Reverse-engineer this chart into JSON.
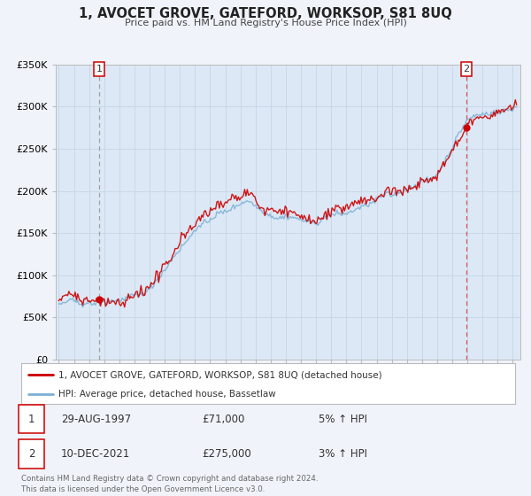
{
  "title": "1, AVOCET GROVE, GATEFORD, WORKSOP, S81 8UQ",
  "subtitle": "Price paid vs. HM Land Registry's House Price Index (HPI)",
  "background_color": "#f0f4fa",
  "plot_bg_color": "#dce8f5",
  "legend_label_red": "1, AVOCET GROVE, GATEFORD, WORKSOP, S81 8UQ (detached house)",
  "legend_label_blue": "HPI: Average price, detached house, Bassetlaw",
  "footer_line1": "Contains HM Land Registry data © Crown copyright and database right 2024.",
  "footer_line2": "This data is licensed under the Open Government Licence v3.0.",
  "xlim_start": 1994.8,
  "xlim_end": 2025.5,
  "ylim_bottom": 0,
  "ylim_top": 350000,
  "yticks": [
    0,
    50000,
    100000,
    150000,
    200000,
    250000,
    300000,
    350000
  ],
  "ytick_labels": [
    "£0",
    "£50K",
    "£100K",
    "£150K",
    "£200K",
    "£250K",
    "£300K",
    "£350K"
  ],
  "sale1_x": 1997.66,
  "sale1_y": 71000,
  "sale1_label": "1",
  "sale1_date": "29-AUG-1997",
  "sale1_price": "£71,000",
  "sale1_hpi": "5% ↑ HPI",
  "sale2_x": 2021.94,
  "sale2_y": 275000,
  "sale2_label": "2",
  "sale2_date": "10-DEC-2021",
  "sale2_price": "£275,000",
  "sale2_hpi": "3% ↑ HPI",
  "red_color": "#cc0000",
  "blue_color": "#7ab0d4",
  "grid_color": "#c8d8e8",
  "vline1_color": "#aaaaaa",
  "vline2_color": "#dd4444"
}
